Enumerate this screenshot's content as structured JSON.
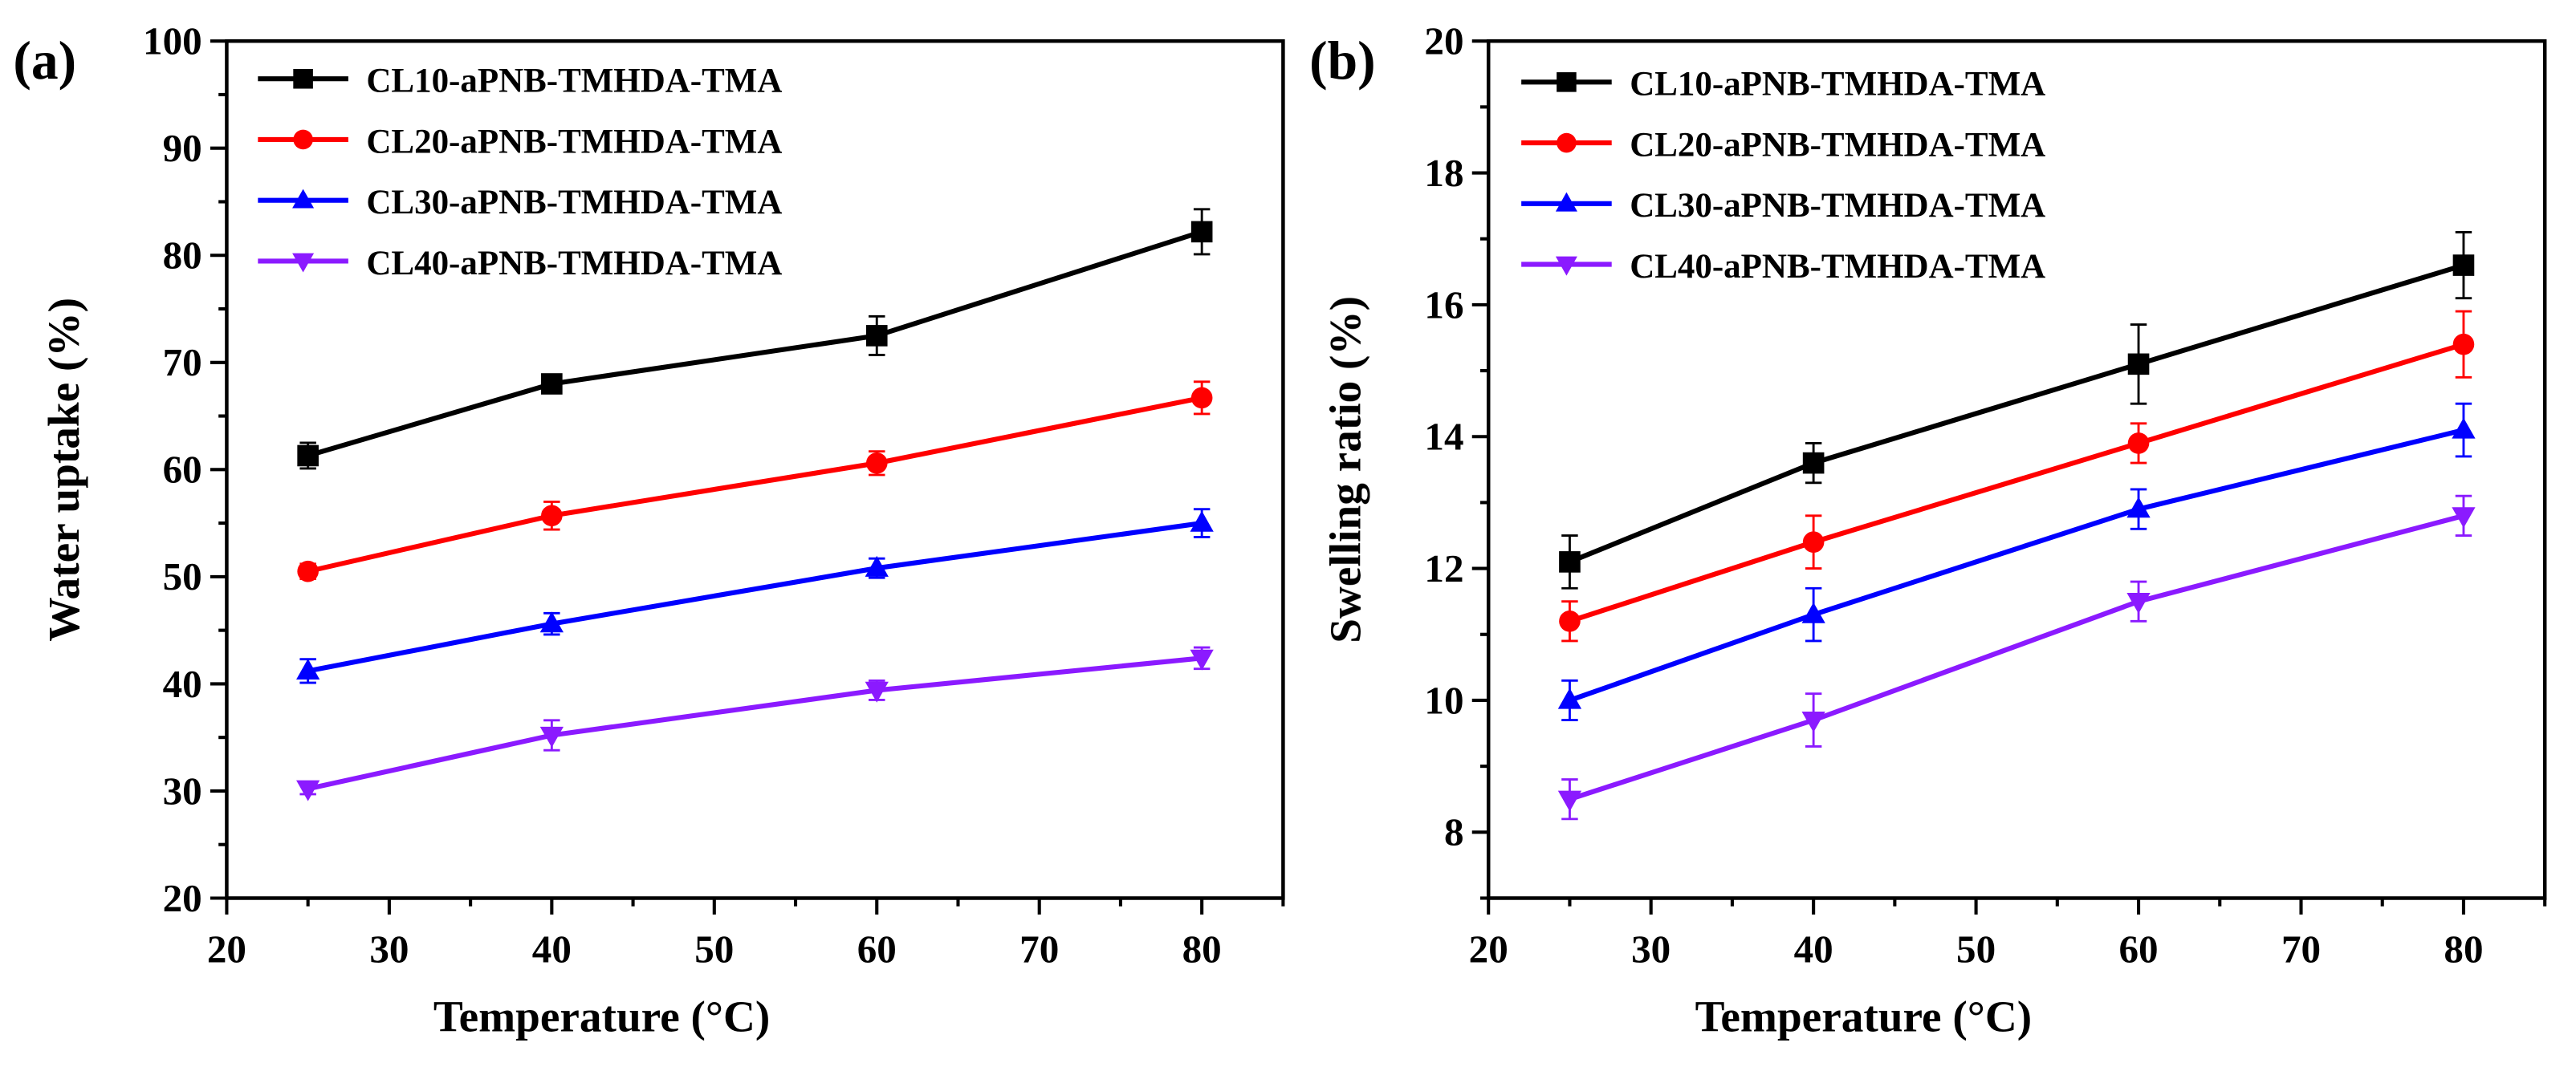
{
  "figure": {
    "panel_labels": [
      "(a)",
      "(b)"
    ]
  },
  "chart_data": [
    {
      "type": "line",
      "panel": "(a)",
      "title": "",
      "xlabel": "Temperature (°C)",
      "ylabel": "Water uptake (%)",
      "xlim": [
        20,
        85
      ],
      "ylim": [
        20,
        100
      ],
      "xticks": [
        20,
        30,
        40,
        50,
        60,
        70,
        80
      ],
      "yticks": [
        20,
        30,
        40,
        50,
        60,
        70,
        80,
        90,
        100
      ],
      "legend_position": "top-left",
      "x": [
        25,
        40,
        60,
        80
      ],
      "series": [
        {
          "name": "CL10-aPNB-TMHDA-TMA",
          "color": "#000000",
          "marker": "square",
          "values": [
            61.3,
            68.0,
            72.5,
            82.2
          ],
          "errors": [
            1.2,
            0.8,
            1.8,
            2.1
          ]
        },
        {
          "name": "CL20-aPNB-TMHDA-TMA",
          "color": "#ff0000",
          "marker": "circle",
          "values": [
            50.5,
            55.7,
            60.6,
            66.7
          ],
          "errors": [
            0.7,
            1.3,
            1.1,
            1.5
          ]
        },
        {
          "name": "CL30-aPNB-TMHDA-TMA",
          "color": "#0000ff",
          "marker": "triangle-up",
          "values": [
            41.2,
            45.6,
            50.8,
            55.0
          ],
          "errors": [
            1.1,
            1.0,
            0.9,
            1.3
          ]
        },
        {
          "name": "CL40-aPNB-TMHDA-TMA",
          "color": "#8b1aff",
          "marker": "triangle-down",
          "values": [
            30.2,
            35.2,
            39.4,
            42.4
          ],
          "errors": [
            0.5,
            1.4,
            0.9,
            1.0
          ]
        }
      ]
    },
    {
      "type": "line",
      "panel": "(b)",
      "title": "",
      "xlabel": "Temperature (°C)",
      "ylabel": "Swelling ratio (%)",
      "xlim": [
        20,
        85
      ],
      "ylim": [
        7,
        20
      ],
      "xticks": [
        20,
        30,
        40,
        50,
        60,
        70,
        80
      ],
      "yticks": [
        8,
        10,
        12,
        14,
        16,
        18,
        20
      ],
      "legend_position": "top-left",
      "x": [
        25,
        40,
        60,
        80
      ],
      "series": [
        {
          "name": "CL10-aPNB-TMHDA-TMA",
          "color": "#000000",
          "marker": "square",
          "values": [
            12.1,
            13.6,
            15.1,
            16.6
          ],
          "errors": [
            0.4,
            0.3,
            0.6,
            0.5
          ]
        },
        {
          "name": "CL20-aPNB-TMHDA-TMA",
          "color": "#ff0000",
          "marker": "circle",
          "values": [
            11.2,
            12.4,
            13.9,
            15.4
          ],
          "errors": [
            0.3,
            0.4,
            0.3,
            0.5
          ]
        },
        {
          "name": "CL30-aPNB-TMHDA-TMA",
          "color": "#0000ff",
          "marker": "triangle-up",
          "values": [
            10.0,
            11.3,
            12.9,
            14.1
          ],
          "errors": [
            0.3,
            0.4,
            0.3,
            0.4
          ]
        },
        {
          "name": "CL40-aPNB-TMHDA-TMA",
          "color": "#8b1aff",
          "marker": "triangle-down",
          "values": [
            8.5,
            9.7,
            11.5,
            12.8
          ],
          "errors": [
            0.3,
            0.4,
            0.3,
            0.3
          ]
        }
      ]
    }
  ]
}
